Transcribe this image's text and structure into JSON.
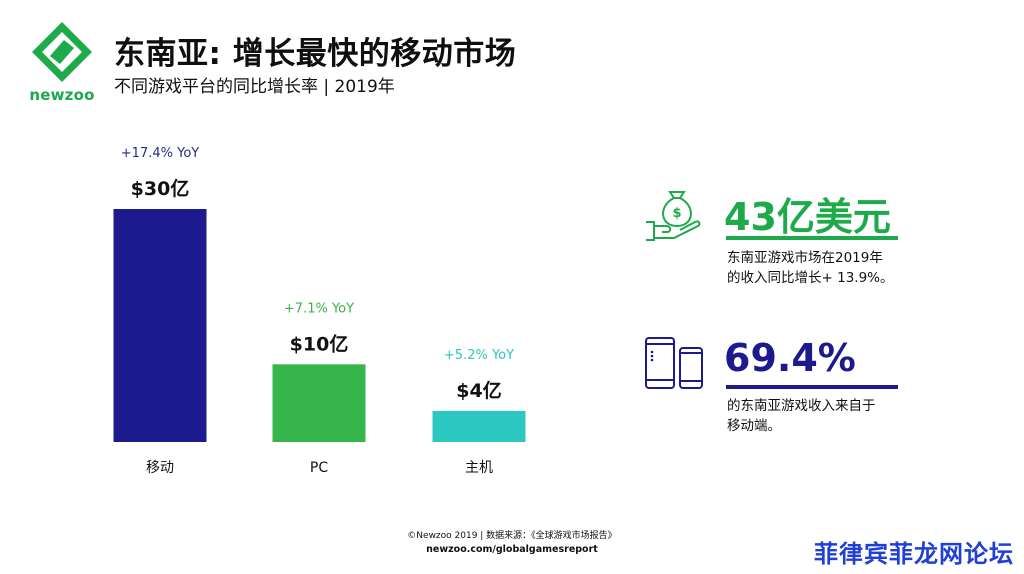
{
  "header": {
    "logo_text": "newzoo",
    "title": "东南亚: 增长最快的移动市场",
    "subtitle": "不同游戏平台的同比增长率 | 2019年"
  },
  "chart_data": {
    "type": "bar",
    "categories": [
      "移动",
      "PC",
      "主机"
    ],
    "values": [
      30,
      10,
      4
    ],
    "value_labels": [
      "$30亿",
      "$10亿",
      "$4亿"
    ],
    "growth_labels": [
      "+17.4% YoY",
      "+7.1% YoY",
      "+5.2% YoY"
    ],
    "colors": [
      "#1c1a8c",
      "#36b54a",
      "#2cc7c0"
    ],
    "growth_colors": [
      "#2a2a8c",
      "#36b54a",
      "#2cc7c0"
    ],
    "ylim": [
      0,
      30
    ]
  },
  "stats": [
    {
      "icon": "money-bag-hand-icon",
      "value": "43亿美元",
      "color": "#1ea94a",
      "desc_line1": "东南亚游戏市场在2019年",
      "desc_line2": "的收入同比增长+ 13.9%。"
    },
    {
      "icon": "mobile-devices-icon",
      "value": "69.4%",
      "color": "#1c1a8c",
      "desc_line1": "的东南亚游戏收入来自于",
      "desc_line2": "移动端。"
    }
  ],
  "footer": {
    "line1": "©Newzoo 2019 | 数据来源：《全球游戏市场报告》",
    "line2": "newzoo.com/globalgamesreport"
  },
  "watermark": "菲律宾菲龙网论坛"
}
